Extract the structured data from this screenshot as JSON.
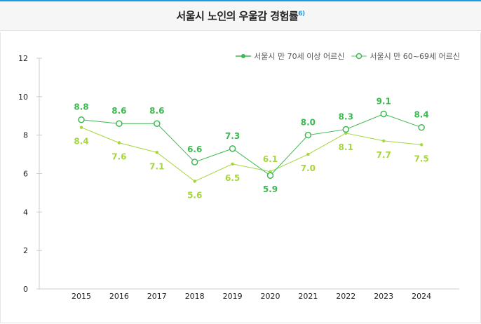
{
  "chart_data": {
    "type": "line",
    "title": "서울시 노인의 우울감 경험률",
    "title_footnote": "6)",
    "categories": [
      "2015",
      "2016",
      "2017",
      "2018",
      "2019",
      "2020",
      "2021",
      "2022",
      "2023",
      "2024"
    ],
    "ylim": [
      0,
      12
    ],
    "yticks": [
      0,
      2,
      4,
      6,
      8,
      10,
      12
    ],
    "grid": false,
    "legend_position": "top-right",
    "series": [
      {
        "name": "서울시 만 70세 이상 어르신",
        "marker": "filled",
        "color": "#a5d63c",
        "values": [
          8.4,
          7.6,
          7.1,
          5.6,
          6.5,
          6.1,
          7.0,
          8.1,
          7.7,
          7.5
        ]
      },
      {
        "name": "서울시 만 60~69세 어르신",
        "marker": "open",
        "color": "#3cb94f",
        "values": [
          8.8,
          8.6,
          8.6,
          6.6,
          7.3,
          5.9,
          8.0,
          8.3,
          9.1,
          8.4
        ]
      }
    ]
  }
}
